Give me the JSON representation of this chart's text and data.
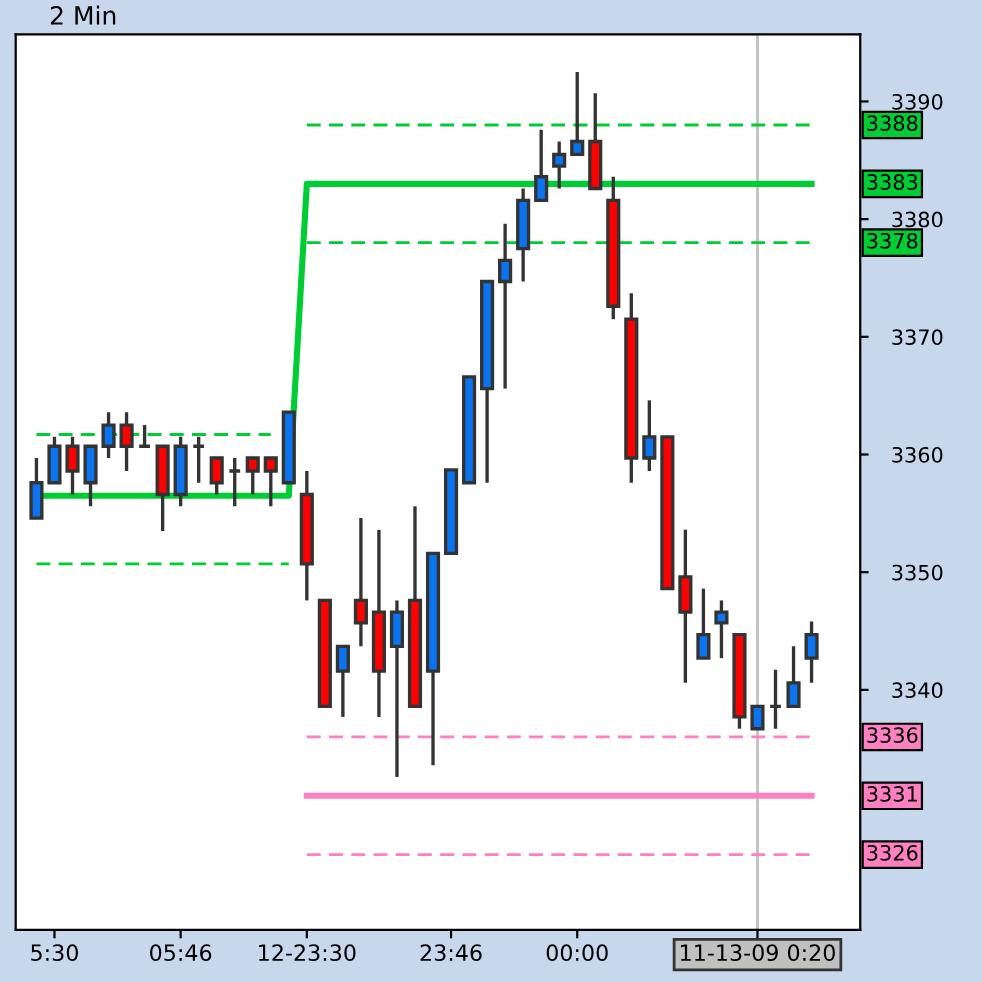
{
  "chart_data": {
    "type": "candlestick",
    "title": "2 Min",
    "categories": [
      null,
      "5:30",
      null,
      null,
      null,
      null,
      null,
      null,
      "05:46",
      null,
      null,
      null,
      null,
      null,
      null,
      "12-23:30",
      null,
      null,
      null,
      null,
      null,
      null,
      null,
      "23:46",
      null,
      null,
      null,
      null,
      null,
      null,
      "00:00",
      null,
      null,
      null,
      null,
      null,
      null,
      null,
      null,
      null,
      "11-13-09 0:20",
      null,
      null,
      null
    ],
    "ohlc": [
      [
        3354.6,
        3359.7,
        3354.6,
        3357.6
      ],
      [
        3357.6,
        3361.5,
        3357.6,
        3360.7
      ],
      [
        3360.7,
        3361.5,
        3356.6,
        3358.6
      ],
      [
        3357.6,
        3360.7,
        3355.6,
        3360.7
      ],
      [
        3360.7,
        3363.6,
        3359.7,
        3362.5
      ],
      [
        3362.5,
        3363.6,
        3358.6,
        3360.7
      ],
      [
        3360.7,
        3362.5,
        3360.7,
        3360.7
      ],
      [
        3360.7,
        3360.7,
        3353.5,
        3356.6
      ],
      [
        3356.6,
        3361.5,
        3355.6,
        3360.7
      ],
      [
        3360.7,
        3361.5,
        3357.6,
        3360.7
      ],
      [
        3359.7,
        3359.7,
        3356.6,
        3357.6
      ],
      [
        3358.6,
        3359.7,
        3355.6,
        3358.6
      ],
      [
        3359.7,
        3359.7,
        3356.6,
        3358.6
      ],
      [
        3359.7,
        3359.7,
        3355.6,
        3358.6
      ],
      [
        3357.6,
        3363.6,
        3357.6,
        3363.6
      ],
      [
        3356.6,
        3358.6,
        3347.6,
        3350.7
      ],
      [
        3347.6,
        3347.6,
        3338.6,
        3338.6
      ],
      [
        3341.6,
        3343.7,
        3337.7,
        3343.7
      ],
      [
        3347.6,
        3354.6,
        3343.7,
        3345.7
      ],
      [
        3346.6,
        3353.6,
        3337.7,
        3341.6
      ],
      [
        3343.7,
        3347.6,
        3332.6,
        3346.6
      ],
      [
        3347.6,
        3355.6,
        3338.6,
        3338.6
      ],
      [
        3341.6,
        3351.6,
        3333.6,
        3351.6
      ],
      [
        3351.6,
        3358.7,
        3351.6,
        3358.7
      ],
      [
        3357.6,
        3366.6,
        3357.6,
        3366.6
      ],
      [
        3365.6,
        3374.7,
        3357.6,
        3374.7
      ],
      [
        3374.7,
        3379.6,
        3365.6,
        3376.5
      ],
      [
        3377.5,
        3382.6,
        3374.7,
        3381.6
      ],
      [
        3381.6,
        3387.6,
        3381.6,
        3383.6
      ],
      [
        3384.5,
        3386.6,
        3382.6,
        3385.5
      ],
      [
        3385.5,
        3392.5,
        3385.5,
        3386.6
      ],
      [
        3386.6,
        3390.7,
        3382.6,
        3382.6
      ],
      [
        3381.6,
        3383.6,
        3371.5,
        3372.6
      ],
      [
        3371.5,
        3373.7,
        3357.6,
        3359.7
      ],
      [
        3359.7,
        3364.6,
        3358.6,
        3361.5
      ],
      [
        3361.5,
        3361.5,
        3348.6,
        3348.6
      ],
      [
        3349.6,
        3353.6,
        3340.6,
        3346.6
      ],
      [
        3342.7,
        3348.6,
        3342.7,
        3344.7
      ],
      [
        3345.7,
        3347.6,
        3342.7,
        3346.6
      ],
      [
        3344.7,
        3344.7,
        3336.7,
        3337.7
      ],
      [
        3336.7,
        3338.6,
        3336.7,
        3338.6
      ],
      [
        3338.6,
        3341.7,
        3336.7,
        3338.6
      ],
      [
        3338.6,
        3343.7,
        3338.6,
        3340.6
      ],
      [
        3342.7,
        3345.8,
        3340.6,
        3344.7
      ]
    ],
    "colors": [
      "#0a74f0",
      "#0a74f0",
      "#ff0000",
      "#0a74f0",
      "#0a74f0",
      "#ff0000",
      "#333333",
      "#ff0000",
      "#0a74f0",
      "#333333",
      "#ff0000",
      "#333333",
      "#ff0000",
      "#ff0000",
      "#0a74f0",
      "#ff0000",
      "#ff0000",
      "#0a74f0",
      "#ff0000",
      "#ff0000",
      "#0a74f0",
      "#ff0000",
      "#0a74f0",
      "#0a74f0",
      "#0a74f0",
      "#0a74f0",
      "#0a74f0",
      "#0a74f0",
      "#0a74f0",
      "#0a74f0",
      "#0a74f0",
      "#ff0000",
      "#ff0000",
      "#ff0000",
      "#0a74f0",
      "#ff0000",
      "#ff0000",
      "#0a74f0",
      "#0a74f0",
      "#ff0000",
      "#0a74f0",
      "#333333",
      "#0a74f0",
      "#0a74f0"
    ],
    "series": [
      {
        "type": "line",
        "name": "3383",
        "color": "#00cc33",
        "line_style": "solid",
        "values": [
          3356.5,
          3356.5,
          3356.5,
          3356.5,
          3356.5,
          3356.5,
          3356.5,
          3356.5,
          3356.5,
          3356.5,
          3356.5,
          3356.5,
          3356.5,
          3356.5,
          3356.5,
          3383,
          3383,
          3383,
          3383,
          3383,
          3383,
          3383,
          3383,
          3383,
          3383,
          3383,
          3383,
          3383,
          3383,
          3383,
          3383,
          3383,
          3383,
          3383,
          3383,
          3383,
          3383,
          3383,
          3383,
          3383,
          3383,
          3383,
          3383,
          3383
        ]
      },
      {
        "type": "line",
        "color": "#00cc33",
        "line_style": "dashed",
        "values": [
          3361.7,
          3361.7,
          3361.7,
          3361.7,
          3361.7,
          3361.7,
          3361.7,
          3361.7,
          3361.7,
          3361.7,
          3361.7,
          3361.7,
          3361.7,
          3361.7,
          null,
          null,
          null,
          null,
          null,
          null,
          null,
          null,
          null,
          null,
          null,
          null,
          null,
          null,
          null,
          null,
          null,
          null,
          null,
          null,
          null,
          null,
          null,
          null,
          null,
          null,
          null,
          null,
          null,
          null
        ]
      },
      {
        "type": "line",
        "color": "#00cc33",
        "line_style": "dashed",
        "values": [
          3350.7,
          3350.7,
          3350.7,
          3350.7,
          3350.7,
          3350.7,
          3350.7,
          3350.7,
          3350.7,
          3350.7,
          3350.7,
          3350.7,
          3350.7,
          3350.7,
          3350.7,
          null,
          null,
          null,
          null,
          null,
          null,
          null,
          null,
          null,
          null,
          null,
          null,
          null,
          null,
          null,
          null,
          null,
          null,
          null,
          null,
          null,
          null,
          null,
          null,
          null,
          null,
          null,
          null,
          null
        ]
      },
      {
        "type": "line",
        "name": "3388",
        "color": "#00cc33",
        "line_style": "dashed",
        "values": [
          null,
          null,
          null,
          null,
          null,
          null,
          null,
          null,
          null,
          null,
          null,
          null,
          null,
          null,
          null,
          3388,
          3388,
          3388,
          3388,
          3388,
          3388,
          3388,
          3388,
          3388,
          3388,
          3388,
          3388,
          3388,
          3388,
          3388,
          3388,
          3388,
          3388,
          3388,
          3388,
          3388,
          3388,
          3388,
          3388,
          3388,
          3388,
          3388,
          3388,
          3388
        ]
      },
      {
        "type": "line",
        "name": "3378",
        "color": "#00cc33",
        "line_style": "dashed",
        "values": [
          null,
          null,
          null,
          null,
          null,
          null,
          null,
          null,
          null,
          null,
          null,
          null,
          null,
          null,
          null,
          3378,
          3378,
          3378,
          3378,
          3378,
          3378,
          3378,
          3378,
          3378,
          3378,
          3378,
          3378,
          3378,
          3378,
          3378,
          3378,
          3378,
          3378,
          3378,
          3378,
          3378,
          3378,
          3378,
          3378,
          3378,
          3378,
          3378,
          3378,
          3378
        ]
      },
      {
        "type": "line",
        "name": "3336",
        "color": "#ff80c0",
        "line_style": "dashed",
        "values": [
          null,
          null,
          null,
          null,
          null,
          null,
          null,
          null,
          null,
          null,
          null,
          null,
          null,
          null,
          null,
          3336,
          3336,
          3336,
          3336,
          3336,
          3336,
          3336,
          3336,
          3336,
          3336,
          3336,
          3336,
          3336,
          3336,
          3336,
          3336,
          3336,
          3336,
          3336,
          3336,
          3336,
          3336,
          3336,
          3336,
          3336,
          3336,
          3336,
          3336,
          3336
        ]
      },
      {
        "type": "line",
        "name": "3331",
        "color": "#ff80c0",
        "line_style": "solid",
        "values": [
          null,
          null,
          null,
          null,
          null,
          null,
          null,
          null,
          null,
          null,
          null,
          null,
          null,
          null,
          null,
          3331,
          3331,
          3331,
          3331,
          3331,
          3331,
          3331,
          3331,
          3331,
          3331,
          3331,
          3331,
          3331,
          3331,
          3331,
          3331,
          3331,
          3331,
          3331,
          3331,
          3331,
          3331,
          3331,
          3331,
          3331,
          3331,
          3331,
          3331,
          3331
        ]
      },
      {
        "type": "line",
        "name": "3326",
        "color": "#ff80c0",
        "line_style": "dashed",
        "values": [
          null,
          null,
          null,
          null,
          null,
          null,
          null,
          null,
          null,
          null,
          null,
          null,
          null,
          null,
          null,
          3326,
          3326,
          3326,
          3326,
          3326,
          3326,
          3326,
          3326,
          3326,
          3326,
          3326,
          3326,
          3326,
          3326,
          3326,
          3326,
          3326,
          3326,
          3326,
          3326,
          3326,
          3326,
          3326,
          3326,
          3326,
          3326,
          3326,
          3326,
          3326
        ]
      }
    ],
    "ylim": [
      3319.6,
      3395.7
    ],
    "yticks": [
      3340,
      3350,
      3360,
      3370,
      3380,
      3390
    ],
    "ref_lines": [
      {
        "axis": "x",
        "value": "11-13-09 0:20",
        "color": "#c0c0c0"
      }
    ]
  }
}
